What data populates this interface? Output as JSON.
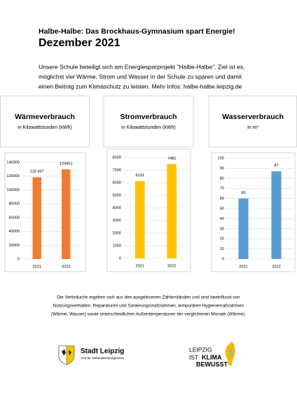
{
  "header": {
    "title": "Halbe-Halbe: Das Brockhaus-Gymnasium spart Energie!",
    "subtitle": "Dezember 2021"
  },
  "intro": [
    "Unsere Schule beteiligt sich am Energiesparprojekt \"Halbe-Halbe\". Ziel ist es,",
    "möglichst viel Wärme, Strom und Wasser in der Schule zu sparen und damit",
    "einen Beitrag zum Klimaschutz zu leisten. Mehr Infos: halbe-halbe.leipzig.de"
  ],
  "panels": [
    {
      "title": "Wärmeverbrauch",
      "unit": "in Kilowattstunden (kWh)"
    },
    {
      "title": "Stromverbrauch",
      "unit": "in Kilowattstunden (kWh)"
    },
    {
      "title": "Wasserverbrauch",
      "unit": "in m³"
    }
  ],
  "chart_data": [
    {
      "type": "bar",
      "categories": [
        "2021",
        "2022"
      ],
      "values": [
        118497,
        129951
      ],
      "value_labels": [
        "118 497",
        "129951"
      ],
      "color": "#ed7d31",
      "ylim": [
        0,
        140000
      ],
      "yticks": [
        0,
        20000,
        40000,
        60000,
        80000,
        100000,
        120000,
        140000
      ],
      "grid": true
    },
    {
      "type": "bar",
      "categories": [
        "2021",
        "2022"
      ],
      "values": [
        6131,
        7481
      ],
      "color": "#ffc000",
      "ylim": [
        0,
        8000
      ],
      "yticks": [
        0,
        1000,
        2000,
        3000,
        4000,
        5000,
        6000,
        7000,
        8000
      ],
      "grid": true
    },
    {
      "type": "bar",
      "categories": [
        "2021",
        "2022"
      ],
      "values": [
        60,
        87
      ],
      "color": "#5b9bd5",
      "ylim": [
        0,
        100
      ],
      "yticks": [
        0,
        10,
        20,
        30,
        40,
        50,
        60,
        70,
        80,
        90,
        100
      ],
      "grid": true
    }
  ],
  "footer": [
    "Die Verbräuche ergeben sich aus den ausgelesenen Zählerständen und sind beeinflusst von",
    "Nutzungsverhalten, Reparaturen und Sanierungsmaßnahmen, temporären Hygienemaßnahmen",
    "(Wärme, Wasser) sowie unterschiedlichen Außentemperaturen der verglichenen Monate (Wärme)."
  ],
  "logos": {
    "left": {
      "name": "Stadt Leipzig",
      "sub": "Amt für Gebäudemanagement"
    },
    "right": [
      "LEIPZIG",
      "IST",
      "KLIMA",
      "BEWUSST"
    ]
  }
}
